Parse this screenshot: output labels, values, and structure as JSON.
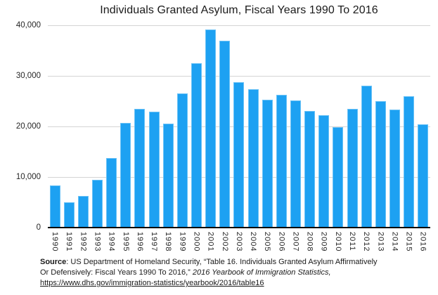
{
  "chart_data": {
    "type": "bar",
    "title": "Individuals Granted Asylum, Fiscal Years 1990 To 2016",
    "xlabel": "",
    "ylabel": "",
    "categories": [
      "1990",
      "1991",
      "1992",
      "1993",
      "1994",
      "1995",
      "1996",
      "1997",
      "1998",
      "1999",
      "2000",
      "2001",
      "2002",
      "2003",
      "2004",
      "2005",
      "2006",
      "2007",
      "2008",
      "2009",
      "2010",
      "2011",
      "2012",
      "2013",
      "2014",
      "2015",
      "2016"
    ],
    "values": [
      8400,
      5000,
      6300,
      9500,
      13800,
      20700,
      23500,
      22900,
      20500,
      26500,
      32500,
      39100,
      36900,
      28800,
      27300,
      25300,
      26300,
      25200,
      23000,
      22200,
      19800,
      23500,
      28000,
      25000,
      23400,
      26000,
      20400
    ],
    "ylim": [
      0,
      40000
    ],
    "yticks": [
      0,
      10000,
      20000,
      30000,
      40000
    ],
    "ytick_labels": [
      "0",
      "10,000",
      "20,000",
      "30,000",
      "40,000"
    ],
    "grid": true,
    "legend": "none",
    "bar_color": "#1DA1F2"
  },
  "footer": {
    "line1": {
      "bold": "Source",
      "text": ": US Department of Homeland Security, “Table 16. Individuals Granted Asylum Affirmatively"
    },
    "line2": {
      "text": "Or Defensively: Fiscal Years 1990 To 2016,”  ",
      "italic": "2016 Yearbook of Immigration Statistics,"
    },
    "line3": {
      "link": "https://www.dhs.gov/immigration-statistics/yearbook/2016/table16"
    }
  }
}
